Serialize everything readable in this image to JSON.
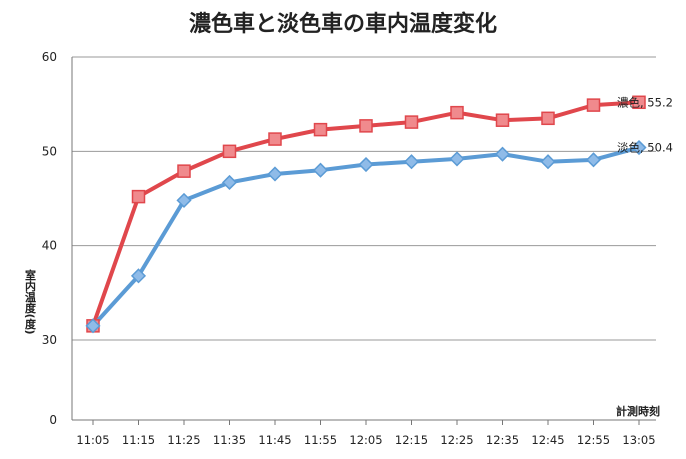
{
  "chart_data": {
    "type": "line",
    "title": "濃色車と淡色車の車内温度変化",
    "xlabel": "計測時刻",
    "ylabel": "室内温度(度)",
    "categories": [
      "11:05",
      "11:15",
      "11:25",
      "11:35",
      "11:45",
      "11:55",
      "12:05",
      "12:15",
      "12:25",
      "12:35",
      "12:45",
      "12:55",
      "13:05"
    ],
    "ylim": [
      0,
      60
    ],
    "yticks": [
      0,
      30,
      40,
      50,
      60
    ],
    "grid": true,
    "series": [
      {
        "name": "濃色",
        "color": "#e0474c",
        "marker": "square",
        "values": [
          31.5,
          45.2,
          47.9,
          50.0,
          51.3,
          52.3,
          52.7,
          53.1,
          54.1,
          53.3,
          53.5,
          54.9,
          55.2
        ],
        "end_label": "濃色, 55.2"
      },
      {
        "name": "淡色",
        "color": "#5b9bd5",
        "marker": "diamond",
        "values": [
          31.5,
          36.8,
          44.8,
          46.7,
          47.6,
          48.0,
          48.6,
          48.9,
          49.2,
          49.7,
          48.9,
          49.1,
          50.4
        ],
        "end_label": "淡色, 50.4"
      }
    ]
  }
}
